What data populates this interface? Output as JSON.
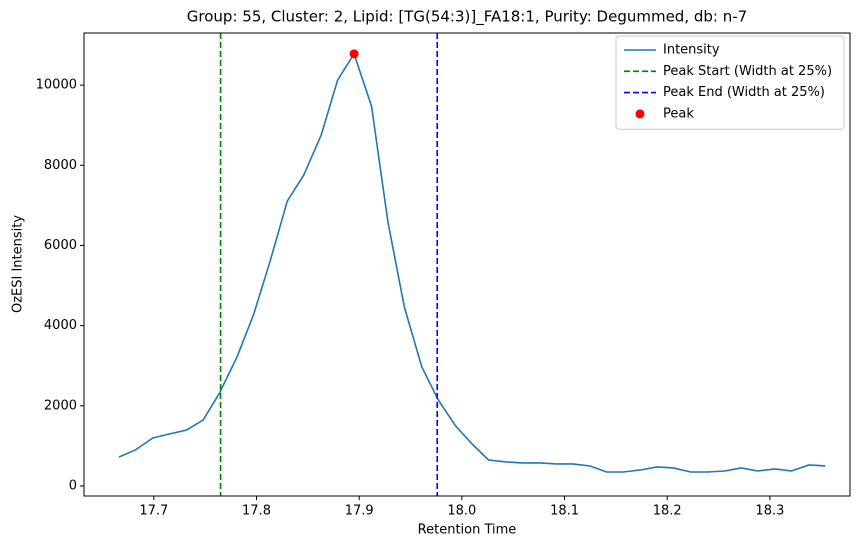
{
  "chart_data": {
    "type": "line",
    "title": "Group: 55, Cluster: 2, Lipid: [TG(54:3)]_FA18:1, Purity: Degummed, db: n-7",
    "xlabel": "Retention Time",
    "ylabel": "OzESI Intensity",
    "x": [
      17.666,
      17.682,
      17.699,
      17.715,
      17.732,
      17.748,
      17.764,
      17.781,
      17.797,
      17.813,
      17.83,
      17.846,
      17.863,
      17.879,
      17.895,
      17.912,
      17.928,
      17.944,
      17.961,
      17.977,
      17.994,
      18.01,
      18.026,
      18.043,
      18.059,
      18.076,
      18.092,
      18.108,
      18.125,
      18.141,
      18.157,
      18.174,
      18.19,
      18.206,
      18.223,
      18.239,
      18.256,
      18.272,
      18.288,
      18.305,
      18.321,
      18.338,
      18.354
    ],
    "series": [
      {
        "name": "Intensity",
        "color": "#1f77b4",
        "values": [
          723,
          898,
          1197,
          1297,
          1397,
          1646,
          2319,
          3217,
          4264,
          5586,
          7107,
          7756,
          8753,
          10125,
          10780,
          9476,
          6584,
          4464,
          2968,
          2145,
          1496,
          1047,
          648,
          599,
          574,
          574,
          549,
          549,
          499,
          349,
          349,
          399,
          474,
          449,
          349,
          349,
          374,
          449,
          374,
          424,
          374,
          524,
          499
        ]
      }
    ],
    "vlines": [
      {
        "name": "Peak Start (Width at 25%)",
        "color": "#008000",
        "x": 17.765
      },
      {
        "name": "Peak End (Width at 25%)",
        "color": "#0000ff",
        "x": 17.976
      }
    ],
    "points": [
      {
        "name": "Peak",
        "color": "#ff0000",
        "x": 17.895,
        "y": 10780
      }
    ],
    "xlim": [
      17.632,
      18.378
    ],
    "ylim": [
      -250,
      11300
    ],
    "xticks": [
      17.7,
      17.8,
      17.9,
      {
        "value": 18.0,
        "label": "18.0"
      },
      18.1,
      18.2,
      18.3
    ],
    "yticks": [
      0,
      2000,
      4000,
      6000,
      8000,
      10000
    ],
    "grid": false,
    "legend": "upper right"
  }
}
